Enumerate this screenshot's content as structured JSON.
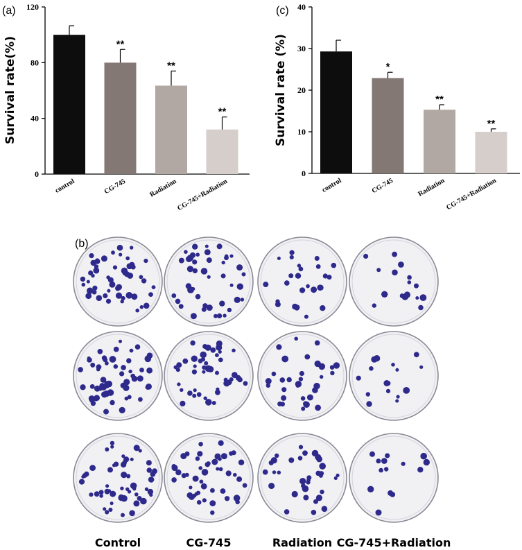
{
  "chart_data": [
    {
      "panel": "(a)",
      "type": "bar",
      "ylabel": "Survival rate(%)",
      "ylim": [
        0,
        120
      ],
      "yticks": [
        "0",
        "40",
        "80",
        "120"
      ],
      "categories": [
        "control",
        "CG-745",
        "Radiation",
        "CG-745+Radiation"
      ],
      "values": [
        100,
        80,
        63.5,
        32
      ],
      "errors": [
        6.5,
        9.5,
        10.5,
        9
      ],
      "significance": [
        "",
        "**",
        "**",
        "**"
      ],
      "colors": [
        "#0d0d0d",
        "#847874",
        "#b1a7a3",
        "#d5cecb"
      ]
    },
    {
      "panel": "(c)",
      "type": "bar",
      "ylabel": "Survival rate  (%)",
      "ylim": [
        0,
        40
      ],
      "yticks": [
        "0",
        "10",
        "20",
        "30",
        "40"
      ],
      "categories": [
        "control",
        "CG-745",
        "Radiation",
        "CG-745+Radiation"
      ],
      "values": [
        29.3,
        22.9,
        15.3,
        10
      ],
      "errors": [
        2.7,
        1.4,
        1.2,
        0.7
      ],
      "significance": [
        "",
        "*",
        "**",
        "**"
      ],
      "colors": [
        "#0d0d0d",
        "#847874",
        "#b1a7a3",
        "#d5cecb"
      ]
    }
  ],
  "plates": {
    "panel": "(b)",
    "captions": [
      "Control",
      "CG-745",
      "Radiation",
      "CG-745+Radiation"
    ],
    "colony_color": "#2e2a8c",
    "plate_fill": "#f1f0f3"
  }
}
